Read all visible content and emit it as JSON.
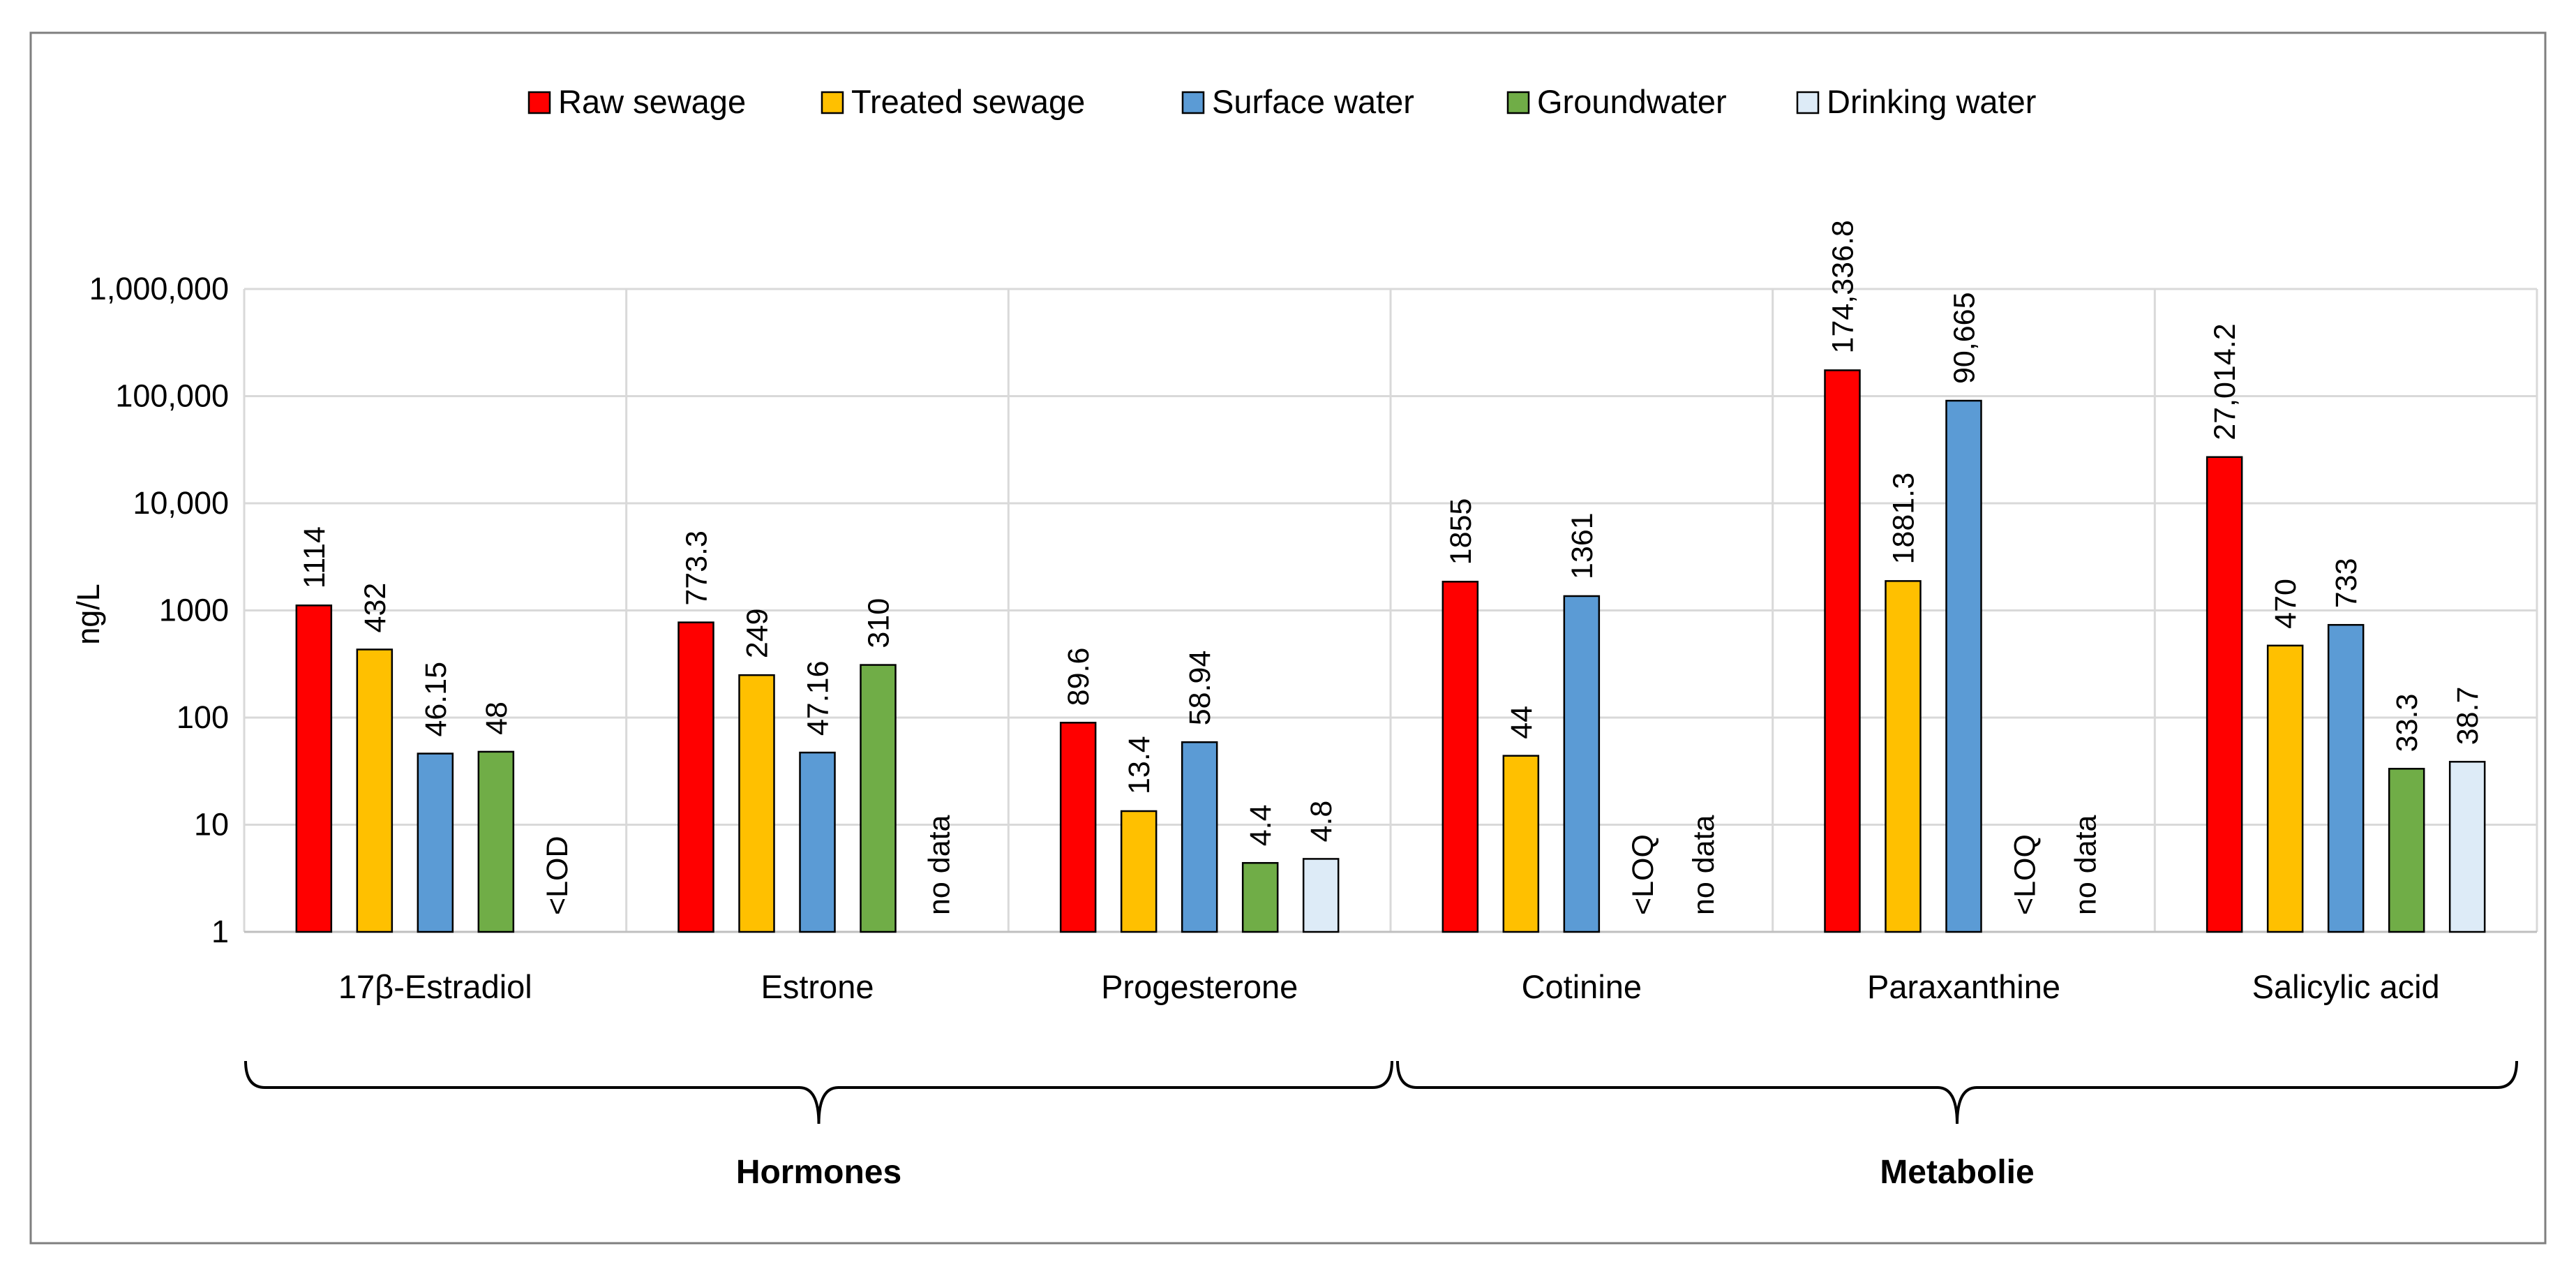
{
  "chart_data": {
    "type": "bar",
    "scale": "log",
    "ylabel": "ng/L",
    "ylim": [
      1,
      1000000
    ],
    "yticks": [
      {
        "value": 1,
        "label": "1"
      },
      {
        "value": 10,
        "label": "10"
      },
      {
        "value": 100,
        "label": "100"
      },
      {
        "value": 1000,
        "label": "1000"
      },
      {
        "value": 10000,
        "label": "10,000"
      },
      {
        "value": 100000,
        "label": "100,000"
      },
      {
        "value": 1000000,
        "label": "1,000,000"
      }
    ],
    "grid": true,
    "legend_position": "top",
    "categories": [
      "17β-Estradiol",
      "Estrone",
      "Progesterone",
      "Cotinine",
      "Paraxanthine",
      "Salicylic acid"
    ],
    "series": [
      {
        "name": "Raw sewage",
        "color": "#FF0000",
        "values": [
          1114,
          773.3,
          89.6,
          1855,
          174336.8,
          27014.2
        ],
        "labels": [
          "1114",
          "773.3",
          "89.6",
          "1855",
          "174,336.8",
          "27,014.2"
        ]
      },
      {
        "name": "Treated sewage",
        "color": "#FFC000",
        "values": [
          432,
          249,
          13.4,
          44,
          1881.3,
          470
        ],
        "labels": [
          "432",
          "249",
          "13.4",
          "44",
          "1881.3",
          "470"
        ]
      },
      {
        "name": "Surface water",
        "color": "#5B9BD5",
        "values": [
          46.15,
          47.16,
          58.94,
          1361,
          90665,
          733
        ],
        "labels": [
          "46.15",
          "47.16",
          "58.94",
          "1361",
          "90,665",
          "733"
        ]
      },
      {
        "name": "Groundwater",
        "color": "#70AD47",
        "values": [
          48,
          310,
          4.4,
          null,
          null,
          33.3
        ],
        "labels": [
          "48",
          "310",
          "4.4",
          "<LOQ",
          "<LOQ",
          "33.3"
        ]
      },
      {
        "name": "Drinking water",
        "color": "#DDEBF7",
        "values": [
          null,
          null,
          4.8,
          null,
          null,
          38.7
        ],
        "labels": [
          "<LOD",
          "no data",
          "4.8",
          "no data",
          "no data",
          "38.7"
        ]
      }
    ],
    "groups": [
      {
        "label": "Hormones",
        "categories": [
          "17β-Estradiol",
          "Estrone",
          "Progesterone"
        ]
      },
      {
        "label": "Metabolie",
        "categories": [
          "Cotinine",
          "Paraxanthine",
          "Salicylic acid"
        ]
      }
    ]
  }
}
